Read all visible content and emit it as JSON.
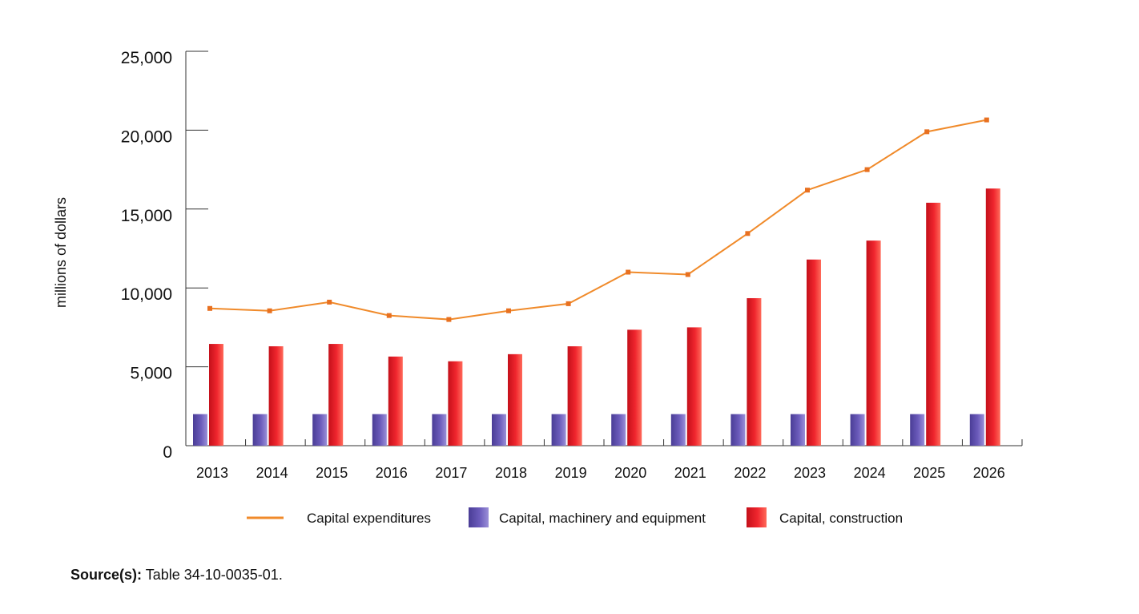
{
  "chart_data": {
    "type": "bar",
    "ylabel": "millions of dollars",
    "ylim": [
      0,
      25000
    ],
    "yticks": [
      0,
      5000,
      10000,
      15000,
      20000,
      25000
    ],
    "ytick_labels": [
      "0",
      "5,000",
      "10,000",
      "15,000",
      "20,000",
      "25,000"
    ],
    "categories": [
      "2013",
      "2014",
      "2015",
      "2016",
      "2017",
      "2018",
      "2019",
      "2020",
      "2021",
      "2022",
      "2023",
      "2024",
      "2025",
      "2026"
    ],
    "series": [
      {
        "name": "Capital, machinery and equipment",
        "type": "bar",
        "color": "#6655b0",
        "values": [
          2000,
          2000,
          2000,
          2000,
          2000,
          2000,
          2000,
          2000,
          2000,
          2000,
          2000,
          2000,
          2000,
          2000
        ]
      },
      {
        "name": "Capital, construction",
        "type": "bar",
        "color": "#e8202a",
        "values": [
          6450,
          6300,
          6450,
          5650,
          5350,
          5800,
          6300,
          7350,
          7500,
          9350,
          11800,
          13000,
          15400,
          16300
        ]
      },
      {
        "name": "Capital expenditures",
        "type": "line",
        "color": "#f08a2a",
        "values": [
          8700,
          8550,
          9100,
          8250,
          8000,
          8550,
          9000,
          11000,
          10850,
          13450,
          16200,
          17500,
          19900,
          20650
        ]
      }
    ],
    "legend_position": "bottom",
    "grid": false
  },
  "source": {
    "label": "Source(s):",
    "text": " Table 34-10-0035-01."
  }
}
